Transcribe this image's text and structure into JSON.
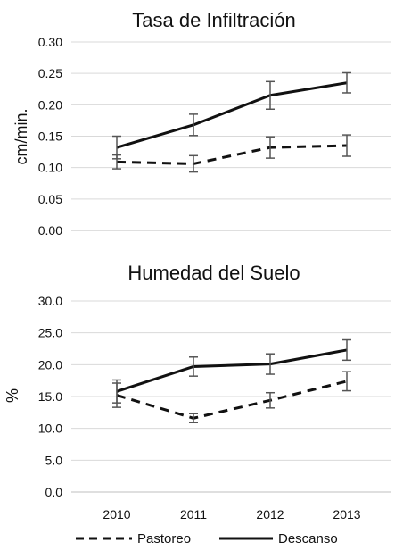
{
  "chart_data": [
    {
      "type": "line",
      "title": "Tasa de Infiltración",
      "xlabel": "",
      "ylabel": "cm/min.",
      "categories": [
        "2010",
        "2011",
        "2012",
        "2013"
      ],
      "ylim": [
        0,
        0.3
      ],
      "yticks": [
        "0.00",
        "0.05",
        "0.10",
        "0.15",
        "0.20",
        "0.25",
        "0.30"
      ],
      "grid": true,
      "series": [
        {
          "name": "Pastoreo",
          "style": "dashed",
          "values": [
            0.109,
            0.106,
            0.132,
            0.135
          ],
          "error": [
            0.011,
            0.013,
            0.017,
            0.017
          ]
        },
        {
          "name": "Descanso",
          "style": "solid",
          "values": [
            0.132,
            0.168,
            0.215,
            0.235
          ],
          "error": [
            0.018,
            0.017,
            0.022,
            0.016
          ]
        }
      ]
    },
    {
      "type": "line",
      "title": "Humedad del Suelo",
      "xlabel": "",
      "ylabel": "%",
      "categories": [
        "2010",
        "2011",
        "2012",
        "2013"
      ],
      "ylim": [
        0,
        30
      ],
      "yticks": [
        "0.0",
        "5.0",
        "10.0",
        "15.0",
        "20.0",
        "25.0",
        "30.0"
      ],
      "grid": true,
      "series": [
        {
          "name": "Pastoreo",
          "style": "dashed",
          "values": [
            15.2,
            11.6,
            14.4,
            17.4
          ],
          "error": [
            1.9,
            0.7,
            1.2,
            1.5
          ]
        },
        {
          "name": "Descanso",
          "style": "solid",
          "values": [
            15.8,
            19.7,
            20.1,
            22.3
          ],
          "error": [
            1.8,
            1.5,
            1.6,
            1.6
          ]
        }
      ]
    }
  ],
  "legend": {
    "position": "bottom",
    "items": [
      {
        "label": "Pastoreo",
        "style": "dashed"
      },
      {
        "label": "Descanso",
        "style": "solid"
      }
    ]
  },
  "colors": {
    "line": "#111111",
    "grid": "#d9d9d9",
    "errorbar": "#555555"
  }
}
